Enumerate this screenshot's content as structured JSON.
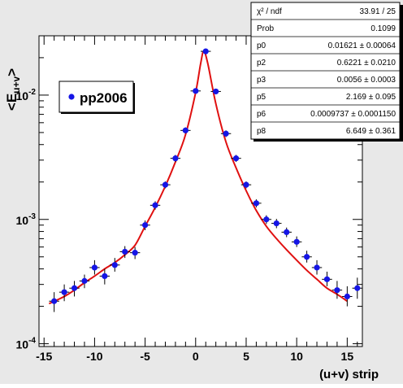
{
  "chart_data": {
    "type": "scatter",
    "ylabel": "<E_{u+v}>",
    "ylabel_main": "<E",
    "ylabel_sub": "u+v",
    "ylabel_close": ">",
    "xlabel": "(u+v) strip",
    "xlim": [
      -15.5,
      16.5
    ],
    "ylim": [
      9.5e-05,
      0.03
    ],
    "yscale": "log",
    "x_ticks": [
      -15,
      -10,
      -5,
      0,
      5,
      10,
      15
    ],
    "x_tick_labels": [
      "-15",
      "-10",
      "-5",
      "0",
      "5",
      "10",
      "15"
    ],
    "y_ticks": [
      0.0001,
      0.001,
      0.01
    ],
    "y_tick_labels": [
      {
        "base": "10",
        "exp": "-4"
      },
      {
        "base": "10",
        "exp": "-3"
      },
      {
        "base": "10",
        "exp": "-2"
      }
    ],
    "legend": {
      "label": "pp2006",
      "position": "upper-left"
    },
    "series": [
      {
        "name": "pp2006",
        "color": "#1515e6",
        "points": [
          {
            "x": -14,
            "y": 0.00022,
            "lo": 0.00018,
            "hi": 0.00026
          },
          {
            "x": -13,
            "y": 0.00026,
            "lo": 0.00022,
            "hi": 0.0003
          },
          {
            "x": -12,
            "y": 0.00028,
            "lo": 0.00024,
            "hi": 0.00032
          },
          {
            "x": -11,
            "y": 0.00032,
            "lo": 0.00028,
            "hi": 0.00036
          },
          {
            "x": -10,
            "y": 0.00041,
            "lo": 0.00036,
            "hi": 0.00047
          },
          {
            "x": -9,
            "y": 0.00035,
            "lo": 0.0003,
            "hi": 0.0004
          },
          {
            "x": -8,
            "y": 0.00043,
            "lo": 0.00038,
            "hi": 0.00049
          },
          {
            "x": -7,
            "y": 0.00055,
            "lo": 0.00049,
            "hi": 0.00061
          },
          {
            "x": -6,
            "y": 0.00054,
            "lo": 0.00048,
            "hi": 0.0006
          },
          {
            "x": -5,
            "y": 0.0009,
            "lo": 0.00082,
            "hi": 0.00098
          },
          {
            "x": -4,
            "y": 0.0013,
            "lo": 0.0012,
            "hi": 0.0014
          },
          {
            "x": -3,
            "y": 0.0019,
            "lo": 0.00178,
            "hi": 0.00202
          },
          {
            "x": -2,
            "y": 0.0031,
            "lo": 0.0029,
            "hi": 0.0033
          },
          {
            "x": -1,
            "y": 0.0052,
            "lo": 0.0049,
            "hi": 0.0055
          },
          {
            "x": 0,
            "y": 0.0108,
            "lo": 0.0103,
            "hi": 0.0113
          },
          {
            "x": 1,
            "y": 0.0225,
            "lo": 0.0218,
            "hi": 0.0232
          },
          {
            "x": 2,
            "y": 0.0107,
            "lo": 0.0102,
            "hi": 0.0112
          },
          {
            "x": 3,
            "y": 0.0049,
            "lo": 0.0046,
            "hi": 0.0052
          },
          {
            "x": 4,
            "y": 0.0031,
            "lo": 0.0029,
            "hi": 0.0033
          },
          {
            "x": 5,
            "y": 0.0019,
            "lo": 0.00178,
            "hi": 0.00202
          },
          {
            "x": 6,
            "y": 0.00135,
            "lo": 0.00125,
            "hi": 0.00145
          },
          {
            "x": 7,
            "y": 0.001,
            "lo": 0.00092,
            "hi": 0.00108
          },
          {
            "x": 8,
            "y": 0.00093,
            "lo": 0.00085,
            "hi": 0.00101
          },
          {
            "x": 9,
            "y": 0.00079,
            "lo": 0.00072,
            "hi": 0.00086
          },
          {
            "x": 10,
            "y": 0.00066,
            "lo": 0.0006,
            "hi": 0.00073
          },
          {
            "x": 11,
            "y": 0.0005,
            "lo": 0.00045,
            "hi": 0.00056
          },
          {
            "x": 12,
            "y": 0.00041,
            "lo": 0.00036,
            "hi": 0.00047
          },
          {
            "x": 13,
            "y": 0.00033,
            "lo": 0.00029,
            "hi": 0.00038
          },
          {
            "x": 14,
            "y": 0.00027,
            "lo": 0.00023,
            "hi": 0.00032
          },
          {
            "x": 15,
            "y": 0.00024,
            "lo": 0.0002,
            "hi": 0.00029
          },
          {
            "x": 16,
            "y": 0.00028,
            "lo": 0.00023,
            "hi": 0.00034
          }
        ]
      }
    ],
    "fit": {
      "color": "#e01010",
      "curve": [
        {
          "x": -14.5,
          "y": 0.00021
        },
        {
          "x": -13,
          "y": 0.00024
        },
        {
          "x": -12,
          "y": 0.00027
        },
        {
          "x": -11,
          "y": 0.00031
        },
        {
          "x": -10,
          "y": 0.00035
        },
        {
          "x": -9,
          "y": 0.0004
        },
        {
          "x": -8,
          "y": 0.00045
        },
        {
          "x": -7,
          "y": 0.00052
        },
        {
          "x": -6,
          "y": 0.00062
        },
        {
          "x": -5,
          "y": 0.00088
        },
        {
          "x": -4,
          "y": 0.00125
        },
        {
          "x": -3,
          "y": 0.00185
        },
        {
          "x": -2,
          "y": 0.0029
        },
        {
          "x": -1,
          "y": 0.0048
        },
        {
          "x": 0,
          "y": 0.0105
        },
        {
          "x": 0.5,
          "y": 0.018
        },
        {
          "x": 0.8,
          "y": 0.0225
        },
        {
          "x": 1.2,
          "y": 0.018
        },
        {
          "x": 2,
          "y": 0.0085
        },
        {
          "x": 3,
          "y": 0.0042
        },
        {
          "x": 4,
          "y": 0.0026
        },
        {
          "x": 5,
          "y": 0.0017
        },
        {
          "x": 6,
          "y": 0.00118
        },
        {
          "x": 7,
          "y": 0.00088
        },
        {
          "x": 8,
          "y": 0.0007
        },
        {
          "x": 9,
          "y": 0.00057
        },
        {
          "x": 10,
          "y": 0.00047
        },
        {
          "x": 11,
          "y": 0.00039
        },
        {
          "x": 12,
          "y": 0.00033
        },
        {
          "x": 13,
          "y": 0.00028
        },
        {
          "x": 14,
          "y": 0.00025
        },
        {
          "x": 15,
          "y": 0.00022
        }
      ]
    },
    "stats": {
      "position": "top-right",
      "rows": [
        {
          "label": "χ² / ndf",
          "value": "33.91 / 25"
        },
        {
          "label": "Prob",
          "value": "0.1099"
        },
        {
          "label": "p0",
          "value": "0.01621 ± 0.00064"
        },
        {
          "label": "p2",
          "value": "0.6221 ± 0.0210"
        },
        {
          "label": "p3",
          "value": "0.0056 ± 0.0003"
        },
        {
          "label": "p5",
          "value": "2.169 ± 0.095"
        },
        {
          "label": "p6",
          "value": "0.0009737 ± 0.0001150"
        },
        {
          "label": "p8",
          "value": "6.649 ± 0.361"
        }
      ]
    }
  }
}
